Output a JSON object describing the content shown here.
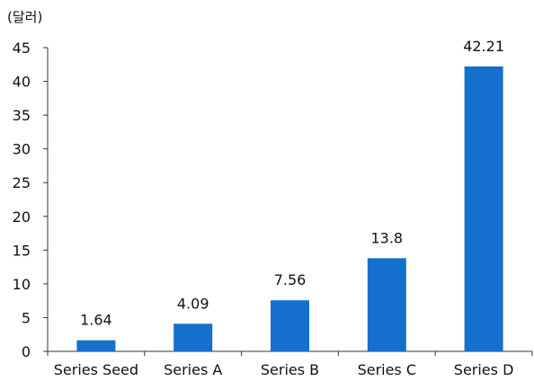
{
  "chart_data": {
    "type": "bar",
    "unit_label": "(달러)",
    "categories": [
      "Series Seed",
      "Series A",
      "Series B",
      "Series C",
      "Series D"
    ],
    "values": [
      1.64,
      4.09,
      7.56,
      13.8,
      42.21
    ],
    "data_labels": [
      "1.64",
      "4.09",
      "7.56",
      "13.8",
      "42.21"
    ],
    "ylim": [
      0,
      45
    ],
    "yticks": [
      0,
      5,
      10,
      15,
      20,
      25,
      30,
      35,
      40,
      45
    ],
    "bar_color": "#1470cc",
    "grid": false,
    "legend": "none"
  }
}
